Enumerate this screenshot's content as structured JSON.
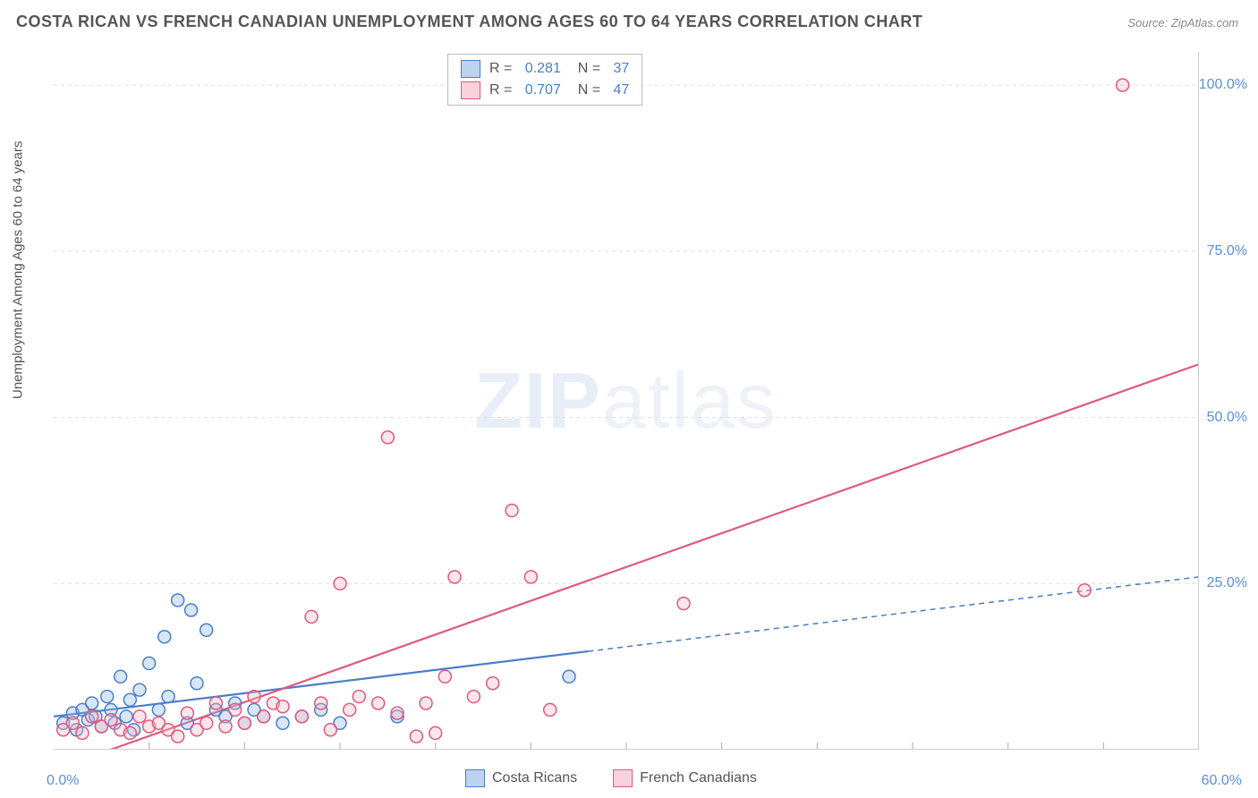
{
  "title": "COSTA RICAN VS FRENCH CANADIAN UNEMPLOYMENT AMONG AGES 60 TO 64 YEARS CORRELATION CHART",
  "source_label": "Source: ZipAtlas.com",
  "y_axis_label": "Unemployment Among Ages 60 to 64 years",
  "watermark": {
    "bold": "ZIP",
    "rest": "atlas"
  },
  "chart": {
    "type": "scatter-with-regression",
    "xlim": [
      0,
      60
    ],
    "ylim": [
      0,
      105
    ],
    "x_ticks": [
      0,
      60
    ],
    "x_tick_labels": [
      "0.0%",
      "60.0%"
    ],
    "x_minor_ticks": [
      5,
      10,
      15,
      20,
      25,
      30,
      35,
      40,
      45,
      50,
      55
    ],
    "y_gridlines": [
      25,
      50,
      75,
      100
    ],
    "y_tick_labels": [
      "25.0%",
      "50.0%",
      "75.0%",
      "100.0%"
    ],
    "background_color": "#ffffff",
    "grid_color": "#dddddd",
    "axis_color": "#cccccc",
    "tick_label_color": "#5b8fd6",
    "marker_radius": 7,
    "marker_fill_opacity": 0.35,
    "marker_stroke_width": 1.5,
    "line_width": 2.2
  },
  "series": [
    {
      "name": "Costa Ricans",
      "legend_label": "Costa Ricans",
      "color_fill": "#8fb4e3",
      "color_stroke": "#4a7fc9",
      "swatch_fill": "#bcd3ef",
      "swatch_border": "#4a7fc9",
      "stats": {
        "R": "0.281",
        "N": "37"
      },
      "regression": {
        "x1": 0,
        "y1": 5.0,
        "x2": 28,
        "y2": 14.8,
        "solid": true
      },
      "regression_ext": {
        "x1": 28,
        "y1": 14.8,
        "x2": 60,
        "y2": 26.0,
        "dashed": true
      },
      "points": [
        [
          0.5,
          4
        ],
        [
          1,
          5.5
        ],
        [
          1.2,
          3
        ],
        [
          1.5,
          6
        ],
        [
          1.8,
          4.5
        ],
        [
          2,
          7
        ],
        [
          2.2,
          5
        ],
        [
          2.5,
          3.5
        ],
        [
          2.8,
          8
        ],
        [
          3,
          6
        ],
        [
          3.2,
          4
        ],
        [
          3.5,
          11
        ],
        [
          3.8,
          5
        ],
        [
          4,
          7.5
        ],
        [
          4.2,
          3
        ],
        [
          4.5,
          9
        ],
        [
          5,
          13
        ],
        [
          5.5,
          6
        ],
        [
          5.8,
          17
        ],
        [
          6,
          8
        ],
        [
          6.5,
          22.5
        ],
        [
          7,
          4
        ],
        [
          7.2,
          21
        ],
        [
          7.5,
          10
        ],
        [
          8,
          18
        ],
        [
          8.5,
          6
        ],
        [
          9,
          5
        ],
        [
          9.5,
          7
        ],
        [
          10,
          4
        ],
        [
          10.5,
          6
        ],
        [
          11,
          5
        ],
        [
          12,
          4
        ],
        [
          13,
          5
        ],
        [
          14,
          6
        ],
        [
          15,
          4
        ],
        [
          18,
          5
        ],
        [
          27,
          11
        ]
      ]
    },
    {
      "name": "French Canadians",
      "legend_label": "French Canadians",
      "color_fill": "#f2b6c6",
      "color_stroke": "#e05a7d",
      "swatch_fill": "#f7d1db",
      "swatch_border": "#e05a7d",
      "stats": {
        "R": "0.707",
        "N": "47"
      },
      "regression": {
        "x1": 1.5,
        "y1": -1.5,
        "x2": 60,
        "y2": 58.0,
        "solid": true
      },
      "points": [
        [
          0.5,
          3
        ],
        [
          1,
          4
        ],
        [
          1.5,
          2.5
        ],
        [
          2,
          5
        ],
        [
          2.5,
          3.5
        ],
        [
          3,
          4.5
        ],
        [
          3.5,
          3
        ],
        [
          4,
          2.5
        ],
        [
          4.5,
          5
        ],
        [
          5,
          3.5
        ],
        [
          5.5,
          4
        ],
        [
          6,
          3
        ],
        [
          6.5,
          2
        ],
        [
          7,
          5.5
        ],
        [
          7.5,
          3
        ],
        [
          8,
          4
        ],
        [
          8.5,
          7
        ],
        [
          9,
          3.5
        ],
        [
          9.5,
          6
        ],
        [
          10,
          4
        ],
        [
          10.5,
          8
        ],
        [
          11,
          5
        ],
        [
          11.5,
          7
        ],
        [
          12,
          6.5
        ],
        [
          13,
          5
        ],
        [
          13.5,
          20
        ],
        [
          14,
          7
        ],
        [
          14.5,
          3
        ],
        [
          15,
          25
        ],
        [
          15.5,
          6
        ],
        [
          16,
          8
        ],
        [
          17,
          7
        ],
        [
          17.5,
          47
        ],
        [
          18,
          5.5
        ],
        [
          19,
          2
        ],
        [
          19.5,
          7
        ],
        [
          20,
          2.5
        ],
        [
          20.5,
          11
        ],
        [
          21,
          26
        ],
        [
          22,
          8
        ],
        [
          23,
          10
        ],
        [
          24,
          36
        ],
        [
          25,
          26
        ],
        [
          26,
          6
        ],
        [
          33,
          22
        ],
        [
          54,
          24
        ],
        [
          56,
          100
        ]
      ]
    }
  ],
  "stats_legend": {
    "R_prefix": "R  = ",
    "N_prefix": "N  = "
  },
  "bottom_legend": {
    "items": [
      "Costa Ricans",
      "French Canadians"
    ]
  }
}
